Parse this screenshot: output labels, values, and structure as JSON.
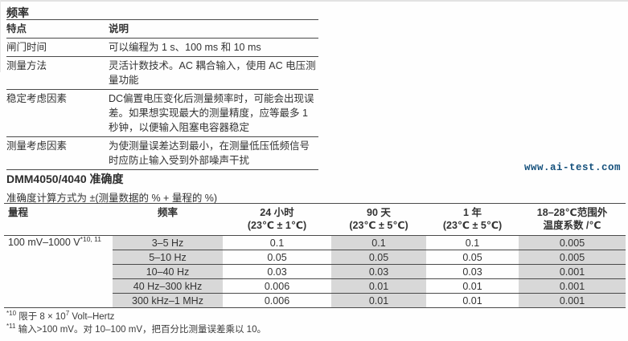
{
  "colors": {
    "background": "#fefefe",
    "text": "#333333",
    "rule": "#4a4a4a",
    "column_shade": "#d8d8d8",
    "watermark": "#14507c"
  },
  "frequency_section": {
    "title": "频率",
    "columns": {
      "feature": "特点",
      "description": "说明"
    },
    "rows": [
      {
        "feature": "闸门时间",
        "description": "可以编程为 1 s、100 ms 和 10 ms"
      },
      {
        "feature": "测量方法",
        "description": "灵活计数技术。AC 耦合输入，使用 AC 电压测量功能"
      },
      {
        "feature": "稳定考虑因素",
        "description": "DC偏置电压变化后测量频率时，可能会出现误差。如果想实现最大的测量精度，应等最多 1 秒钟，以便输入阻塞电容器稳定"
      },
      {
        "feature": "测量考虑因素",
        "description": "为使测量误差达到最小，在测量低压低频信号时应防止输入受到外部噪声干扰"
      }
    ]
  },
  "watermark": {
    "text": "www.ai-test.com"
  },
  "accuracy_section": {
    "title": "DMM4050/4040 准确度",
    "formula": "准确度计算方式为 ±(测量数据的 % + 量程的 %)",
    "table": {
      "headers": [
        {
          "label": "量程",
          "sublabel": ""
        },
        {
          "label": "频率",
          "sublabel": ""
        },
        {
          "label": "24 小时",
          "sublabel": "(23℃ ± 1℃)"
        },
        {
          "label": "90 天",
          "sublabel": "(23℃ ± 5℃)"
        },
        {
          "label": "1 年",
          "sublabel": "(23℃ ± 5℃)"
        },
        {
          "label": "18–28℃范围外",
          "sublabel": "温度系数 /℃"
        }
      ],
      "range": {
        "text": "100 mV–1000 V",
        "note_ref": "*10, 11"
      },
      "rows": [
        {
          "frequency": "3–5 Hz",
          "h24": "0.1",
          "d90": "0.1",
          "y1": "0.1",
          "tempco": "0.005"
        },
        {
          "frequency": "5–10 Hz",
          "h24": "0.05",
          "d90": "0.05",
          "y1": "0.05",
          "tempco": "0.005"
        },
        {
          "frequency": "10–40 Hz",
          "h24": "0.03",
          "d90": "0.03",
          "y1": "0.03",
          "tempco": "0.001"
        },
        {
          "frequency": "40 Hz–300 kHz",
          "h24": "0.006",
          "d90": "0.01",
          "y1": "0.01",
          "tempco": "0.001"
        },
        {
          "frequency": "300 kHz–1 MHz",
          "h24": "0.006",
          "d90": "0.01",
          "y1": "0.01",
          "tempco": "0.001"
        }
      ]
    }
  },
  "footnotes": {
    "fn10": {
      "marker": "*10",
      "pre": "限于 8 × 10",
      "sup": "7",
      "post": " Volt–Hertz"
    },
    "fn11": {
      "marker": "*11",
      "text": "输入>100 mV。对 10–100 mV，把百分比测量误差乘以 10。"
    }
  }
}
